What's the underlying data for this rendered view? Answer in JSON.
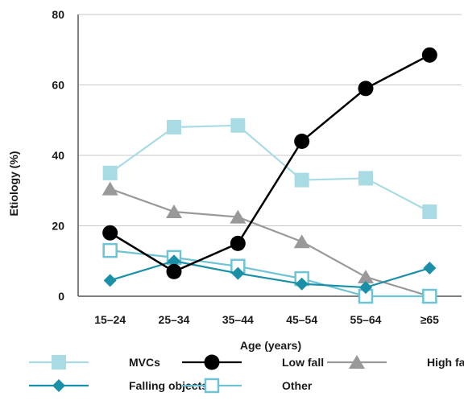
{
  "chart_data": {
    "type": "line",
    "title": "",
    "xlabel": "Age (years)",
    "ylabel": "Etiology (%)",
    "categories": [
      "15–24",
      "25–34",
      "35–44",
      "45–54",
      "55–64",
      "≥65"
    ],
    "ylim": [
      0,
      80
    ],
    "yticks": [
      0,
      20,
      40,
      60,
      80
    ],
    "grid": "horizontal",
    "legend_position": "bottom",
    "series": [
      {
        "name": "MVCs",
        "color": "#a8dbe4",
        "marker": "filled-square",
        "values": [
          35,
          48,
          48.5,
          33,
          33.5,
          24
        ]
      },
      {
        "name": "Low fall",
        "color": "#000000",
        "marker": "filled-circle",
        "values": [
          18,
          7,
          15,
          44,
          59,
          68.5
        ]
      },
      {
        "name": "High fall",
        "color": "#999999",
        "marker": "filled-triangle",
        "values": [
          30.5,
          24,
          22.5,
          15.5,
          5.5,
          0
        ]
      },
      {
        "name": "Falling objects",
        "color": "#1a8fa8",
        "marker": "filled-diamond",
        "values": [
          4.5,
          10,
          6.5,
          3.5,
          2.5,
          8
        ]
      },
      {
        "name": "Other",
        "color": "#6ec3d4",
        "marker": "open-square",
        "values": [
          13,
          11,
          8.5,
          5,
          0,
          0
        ]
      }
    ]
  }
}
